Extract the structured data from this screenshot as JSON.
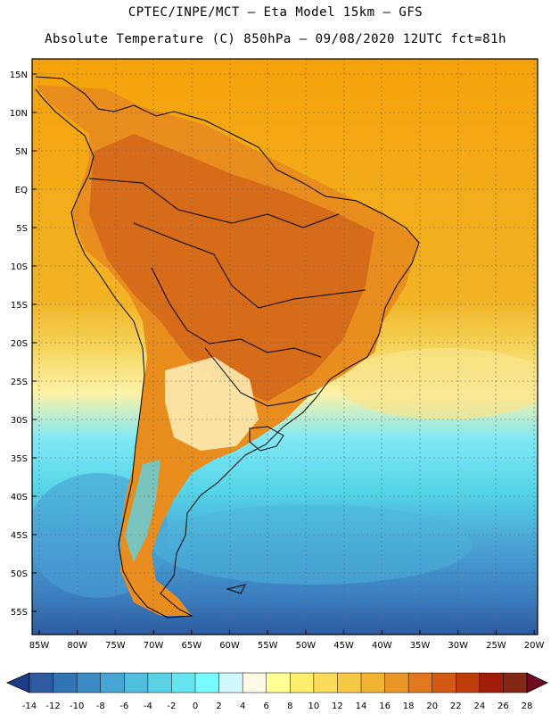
{
  "header": {
    "title_line1": "CPTEC/INPE/MCT –  Eta Model 15km – GFS",
    "title_line2": "Absolute Temperature (C) 850hPa – 09/08/2020 12UTC fct=81h"
  },
  "map": {
    "lat_labels": [
      "15N",
      "10N",
      "5N",
      "EQ",
      "5S",
      "10S",
      "15S",
      "20S",
      "25S",
      "30S",
      "35S",
      "40S",
      "45S",
      "50S",
      "55S"
    ],
    "lon_labels": [
      "85W",
      "80W",
      "75W",
      "70W",
      "65W",
      "60W",
      "55W",
      "50W",
      "45W",
      "40W",
      "35W",
      "30W",
      "25W",
      "20W"
    ]
  },
  "colorbar": {
    "tick_labels": [
      "-14",
      "-12",
      "-10",
      "-8",
      "-6",
      "-4",
      "-2",
      "0",
      "2",
      "4",
      "6",
      "8",
      "10",
      "12",
      "14",
      "16",
      "18",
      "20",
      "22",
      "24",
      "26",
      "28"
    ],
    "colors": [
      "#1e3c8c",
      "#2d5aa0",
      "#3273b4",
      "#3c8cc3",
      "#46a5d2",
      "#50bedc",
      "#5ad2e6",
      "#64e6f0",
      "#78faff",
      "#d2f8ff",
      "#fffae6",
      "#ffff96",
      "#ffee6e",
      "#fadc5a",
      "#f5c846",
      "#f0b432",
      "#eb9628",
      "#e1781e",
      "#d25a14",
      "#be3c0a",
      "#a01e0a",
      "#822814",
      "#6e0a23"
    ]
  }
}
